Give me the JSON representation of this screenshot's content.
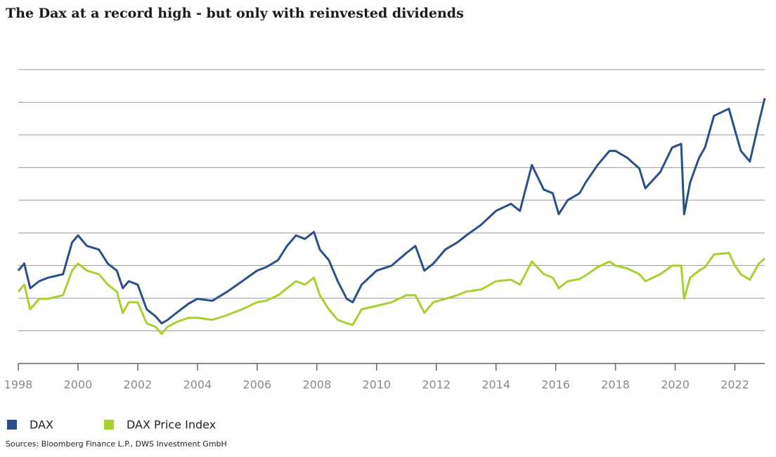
{
  "chart_data": {
    "type": "line",
    "title": "The Dax at a record high - but only with reinvested dividends",
    "source": "Sources: Bloomberg Finance L.P., DWS Investment GmbH",
    "x": [
      1998.0,
      1998.2,
      1998.4,
      1998.7,
      1999.0,
      1999.5,
      1999.8,
      2000.0,
      2000.3,
      2000.7,
      2001.0,
      2001.3,
      2001.5,
      2001.7,
      2002.0,
      2002.3,
      2002.6,
      2002.8,
      2003.0,
      2003.3,
      2003.7,
      2004.0,
      2004.5,
      2005.0,
      2005.5,
      2006.0,
      2006.3,
      2006.7,
      2007.0,
      2007.3,
      2007.6,
      2007.9,
      2008.1,
      2008.4,
      2008.7,
      2009.0,
      2009.2,
      2009.5,
      2010.0,
      2010.5,
      2011.0,
      2011.3,
      2011.6,
      2011.9,
      2012.3,
      2012.7,
      2013.0,
      2013.5,
      2014.0,
      2014.5,
      2014.8,
      2015.2,
      2015.6,
      2015.9,
      2016.1,
      2016.4,
      2016.8,
      2017.0,
      2017.4,
      2017.8,
      2018.0,
      2018.4,
      2018.8,
      2019.0,
      2019.5,
      2019.9,
      2020.2,
      2020.3,
      2020.5,
      2020.8,
      2021.0,
      2021.3,
      2021.8,
      2022.0,
      2022.2,
      2022.5,
      2022.8,
      2023.0
    ],
    "series": [
      {
        "name": "DAX",
        "color": "#2b4f8c",
        "values": [
          5690,
          6120,
          4610,
          5040,
          5260,
          5470,
          7410,
          7840,
          7200,
          6980,
          6120,
          5690,
          4610,
          5040,
          4830,
          3320,
          2890,
          2460,
          2670,
          3100,
          3660,
          3960,
          3840,
          4400,
          5040,
          5690,
          5900,
          6330,
          7200,
          7840,
          7630,
          8060,
          6980,
          6330,
          5040,
          3960,
          3750,
          4830,
          5690,
          5990,
          6770,
          7200,
          5690,
          6120,
          6980,
          7410,
          7840,
          8490,
          9350,
          9780,
          9350,
          12150,
          10650,
          10430,
          9140,
          10000,
          10430,
          11080,
          12150,
          13020,
          13020,
          12590,
          11940,
          10730,
          11720,
          13230,
          13450,
          9140,
          11080,
          12590,
          13230,
          15170,
          15600,
          14310,
          13020,
          12370,
          14740,
          16250
        ]
      },
      {
        "name": "DAX Price Index",
        "color": "#a8d02e",
        "values": [
          4400,
          4830,
          3320,
          3960,
          3960,
          4180,
          5690,
          6120,
          5690,
          5470,
          4830,
          4400,
          3100,
          3750,
          3750,
          2460,
          2240,
          1810,
          2240,
          2540,
          2800,
          2800,
          2670,
          2970,
          3320,
          3750,
          3840,
          4180,
          4610,
          5040,
          4830,
          5260,
          4180,
          3320,
          2670,
          2460,
          2370,
          3320,
          3530,
          3750,
          4180,
          4180,
          3100,
          3750,
          3960,
          4180,
          4400,
          4530,
          5040,
          5130,
          4830,
          6250,
          5470,
          5260,
          4610,
          5040,
          5170,
          5390,
          5900,
          6250,
          5990,
          5820,
          5470,
          5040,
          5470,
          5990,
          5990,
          3960,
          5260,
          5690,
          5900,
          6680,
          6770,
          5990,
          5470,
          5130,
          6120,
          6420
        ]
      }
    ],
    "xlim": [
      1998,
      2023
    ],
    "xticks": [
      1998,
      2000,
      2002,
      2004,
      2006,
      2008,
      2010,
      2012,
      2014,
      2016,
      2018,
      2020,
      2022
    ],
    "ylim": [
      0,
      18000
    ],
    "yticks": [
      0,
      2000,
      4000,
      6000,
      8000,
      10000,
      12000,
      14000,
      16000,
      18000
    ],
    "show_ytick_labels": false,
    "grid": true
  }
}
